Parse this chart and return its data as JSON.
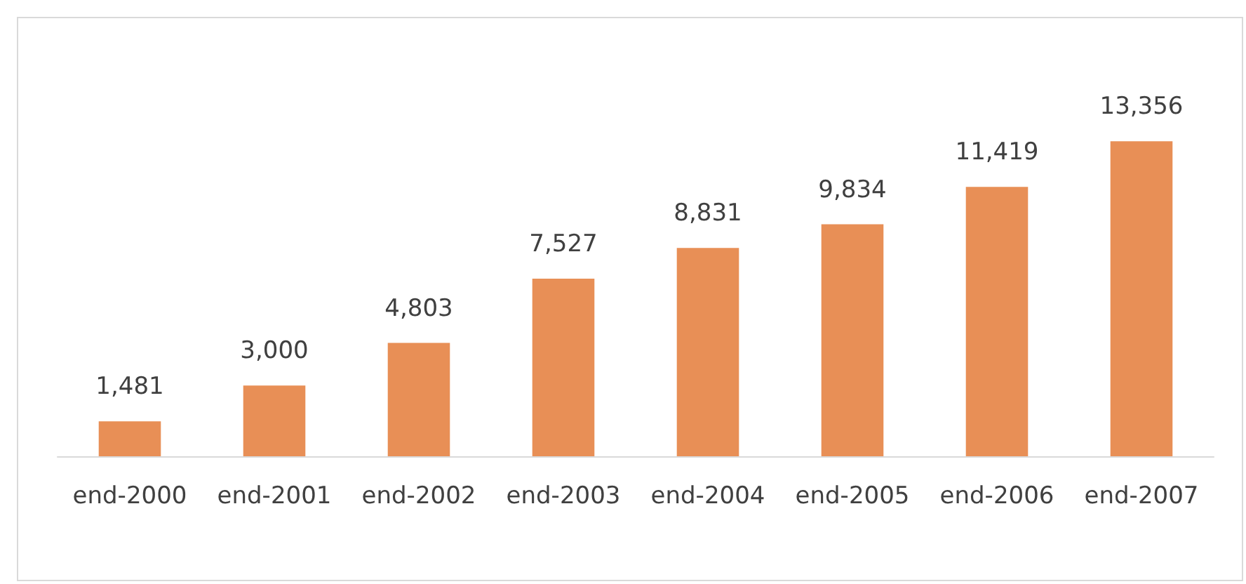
{
  "chart_data": {
    "type": "bar",
    "categories": [
      "end-2000",
      "end-2001",
      "end-2002",
      "end-2003",
      "end-2004",
      "end-2005",
      "end-2006",
      "end-2007"
    ],
    "values": [
      1481,
      3000,
      4803,
      7527,
      8831,
      9834,
      11419,
      13356
    ],
    "value_labels": [
      "1,481",
      "3,000",
      "4,803",
      "7,527",
      "8,831",
      "9,834",
      "11,419",
      "13,356"
    ],
    "color": "#e88f56"
  }
}
